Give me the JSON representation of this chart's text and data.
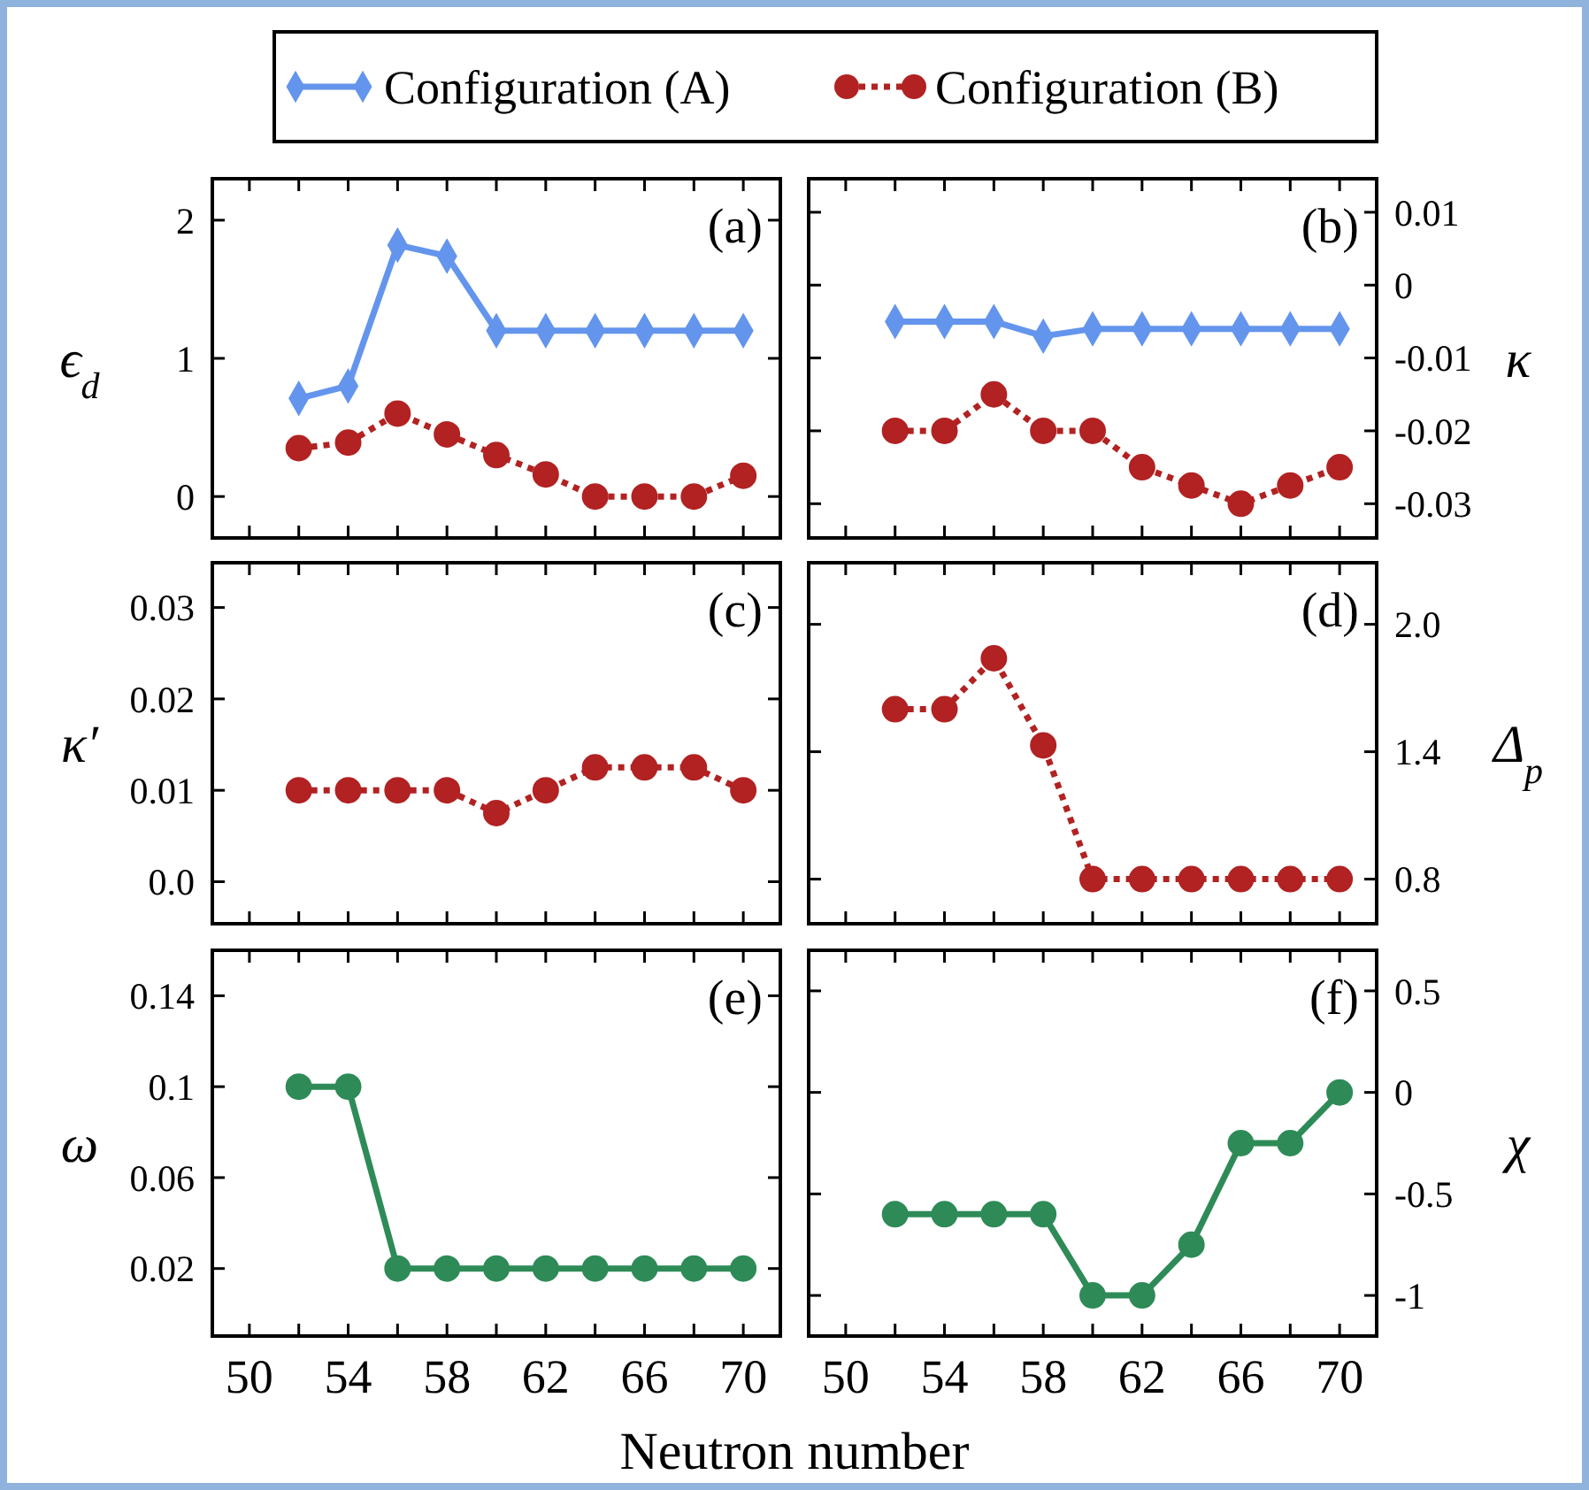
{
  "chart_data": [
    {
      "type": "line",
      "ylabel": "ϵ$_{d}$",
      "annotations": [
        "(a)"
      ],
      "legend": "top",
      "tick_labels": "y",
      "xlim": [
        48.5,
        71.5
      ],
      "xticks": [
        50,
        {
          "value": 52,
          "label": null
        },
        54,
        {
          "value": 56,
          "label": null
        },
        58,
        {
          "value": 60,
          "label": null
        },
        62,
        {
          "value": 64,
          "label": null
        },
        66,
        {
          "value": 68,
          "label": null
        },
        70
      ],
      "ylim": [
        -0.3,
        2.3
      ],
      "yticks": [
        0,
        1,
        2
      ],
      "series": [
        {
          "name": "Configuration (A)",
          "color": "#6495ed",
          "marker": "diamond",
          "line_style": "solid",
          "x": [
            52,
            54,
            56,
            58,
            60,
            62,
            64,
            66,
            68,
            70
          ],
          "values": [
            0.71,
            0.8,
            1.82,
            1.74,
            1.2,
            1.2,
            1.2,
            1.2,
            1.2,
            1.2
          ]
        },
        {
          "name": "Configuration (B)",
          "color": "#b22222",
          "marker": "circle",
          "line_style": "dotted",
          "x": [
            52,
            54,
            56,
            58,
            60,
            62,
            64,
            66,
            68,
            70
          ],
          "values": [
            0.35,
            0.39,
            0.6,
            0.45,
            0.3,
            0.16,
            0,
            0,
            0,
            0.15
          ]
        }
      ]
    },
    {
      "type": "line",
      "ylabel": "κ",
      "annotations": [
        "(b)"
      ],
      "tick_labels": "y",
      "xlim": [
        48.5,
        71.5
      ],
      "xticks": [
        50,
        {
          "value": 52,
          "label": null
        },
        54,
        {
          "value": 56,
          "label": null
        },
        58,
        {
          "value": 60,
          "label": null
        },
        62,
        {
          "value": 64,
          "label": null
        },
        66,
        {
          "value": 68,
          "label": null
        },
        70
      ],
      "ylim": [
        -0.0347,
        0.0146
      ],
      "yticks": [
        0.01,
        0,
        -0.01,
        -0.02,
        -0.03
      ],
      "series": [
        {
          "color": "#6495ed",
          "marker": "diamond",
          "line_style": "solid",
          "x": [
            52,
            54,
            56,
            58,
            60,
            62,
            64,
            66,
            68,
            70
          ],
          "values": [
            -0.005,
            -0.005,
            -0.005,
            -0.007,
            -0.006,
            -0.006,
            -0.006,
            -0.006,
            -0.006,
            -0.006
          ]
        },
        {
          "color": "#b22222",
          "marker": "circle",
          "line_style": "dotted",
          "x": [
            52,
            54,
            56,
            58,
            60,
            62,
            64,
            66,
            68,
            70
          ],
          "values": [
            -0.02,
            -0.02,
            -0.015,
            -0.02,
            -0.02,
            -0.025,
            -0.0275,
            -0.03,
            -0.0275,
            -0.025
          ]
        }
      ]
    },
    {
      "type": "line",
      "ylabel": "κ′",
      "annotations": [
        "(c)"
      ],
      "tick_labels": "y",
      "xlim": [
        48.5,
        71.5
      ],
      "xticks": [
        50,
        {
          "value": 52,
          "label": null
        },
        54,
        {
          "value": 56,
          "label": null
        },
        58,
        {
          "value": 60,
          "label": null
        },
        62,
        {
          "value": 64,
          "label": null
        },
        66,
        {
          "value": 68,
          "label": null
        },
        70
      ],
      "ylim": [
        -0.0046,
        0.0349
      ],
      "yticks": [
        0.03,
        0.02,
        0.01,
        {
          "value": 0,
          "label": "0.0"
        }
      ],
      "series": [
        {
          "color": "#b22222",
          "marker": "circle",
          "line_style": "dotted",
          "x": [
            52,
            54,
            56,
            58,
            60,
            62,
            64,
            66,
            68,
            70
          ],
          "values": [
            0.01,
            0.01,
            0.01,
            0.01,
            0.0075,
            0.01,
            0.0125,
            0.0125,
            0.0125,
            0.01
          ]
        }
      ]
    },
    {
      "type": "line",
      "ylabel": "Δ$_{p}$",
      "annotations": [
        "(d)"
      ],
      "tick_labels": "y",
      "xlim": [
        48.5,
        71.5
      ],
      "xticks": [
        50,
        {
          "value": 52,
          "label": null
        },
        54,
        {
          "value": 56,
          "label": null
        },
        58,
        {
          "value": 60,
          "label": null
        },
        62,
        {
          "value": 64,
          "label": null
        },
        66,
        {
          "value": 68,
          "label": null
        },
        70
      ],
      "ylim": [
        0.59,
        2.29
      ],
      "yticks": [
        {
          "value": 2,
          "label": "2.0"
        },
        1.4,
        0.8
      ],
      "series": [
        {
          "color": "#b22222",
          "marker": "circle",
          "line_style": "dotted",
          "x": [
            52,
            54,
            56,
            58,
            60,
            62,
            64,
            66,
            68,
            70
          ],
          "values": [
            1.6,
            1.6,
            1.84,
            1.43,
            0.8,
            0.8,
            0.8,
            0.8,
            0.8,
            0.8
          ]
        }
      ]
    },
    {
      "type": "line",
      "ylabel": "ω",
      "xlabel": "Neutron number",
      "annotations": [
        "(e)"
      ],
      "xlim": [
        48.5,
        71.5
      ],
      "xticks": [
        50,
        {
          "value": 52,
          "label": null
        },
        54,
        {
          "value": 56,
          "label": null
        },
        58,
        {
          "value": 60,
          "label": null
        },
        62,
        {
          "value": 64,
          "label": null
        },
        66,
        {
          "value": 68,
          "label": null
        },
        70
      ],
      "ylim": [
        -0.0097,
        0.16
      ],
      "yticks": [
        0.14,
        0.1,
        0.06,
        0.02
      ],
      "series": [
        {
          "color": "#2e8b57",
          "marker": "circle",
          "line_style": "solid",
          "x": [
            52,
            54,
            56,
            58,
            60,
            62,
            64,
            66,
            68,
            70
          ],
          "values": [
            0.1,
            0.1,
            0.02,
            0.02,
            0.02,
            0.02,
            0.02,
            0.02,
            0.02,
            0.02
          ]
        }
      ]
    },
    {
      "type": "line",
      "ylabel": "χ",
      "annotations": [
        "(f)"
      ],
      "xlim": [
        48.5,
        71.5
      ],
      "xticks": [
        50,
        {
          "value": 52,
          "label": null
        },
        54,
        {
          "value": 56,
          "label": null
        },
        58,
        {
          "value": 60,
          "label": null
        },
        62,
        {
          "value": 64,
          "label": null
        },
        66,
        {
          "value": 68,
          "label": null
        },
        70
      ],
      "ylim": [
        -1.2,
        0.7
      ],
      "yticks": [
        0.5,
        0,
        -0.5,
        -1
      ],
      "series": [
        {
          "color": "#2e8b57",
          "marker": "circle",
          "line_style": "solid",
          "x": [
            52,
            54,
            56,
            58,
            60,
            62,
            64,
            66,
            68,
            70
          ],
          "values": [
            -0.6,
            -0.6,
            -0.6,
            -0.6,
            -1,
            -1,
            -0.75,
            -0.25,
            -0.25,
            0
          ]
        }
      ]
    }
  ]
}
